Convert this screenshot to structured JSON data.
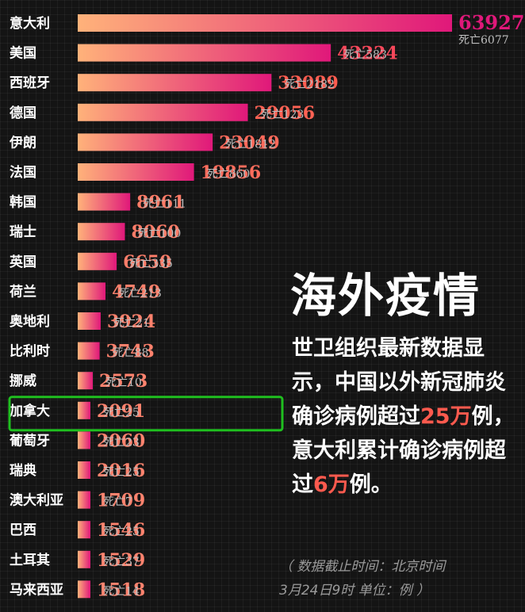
{
  "chart_data": {
    "type": "bar",
    "orientation": "horizontal",
    "categories": [
      "意大利",
      "美国",
      "西班牙",
      "德国",
      "伊朗",
      "法国",
      "韩国",
      "瑞士",
      "英国",
      "荷兰",
      "奥地利",
      "比利时",
      "挪威",
      "加拿大",
      "葡萄牙",
      "瑞典",
      "澳大利亚",
      "巴西",
      "土耳其",
      "马来西亚"
    ],
    "series": [
      {
        "values": [
          63927,
          43224,
          33089,
          29056,
          23049,
          19856,
          8961,
          8060,
          6650,
          4749,
          3924,
          3743,
          2573,
          2091,
          2060,
          2016,
          1709,
          1546,
          1529,
          1518
        ]
      }
    ],
    "death_prefix": "死亡",
    "deaths": [
      6077,
      583,
      2182,
      123,
      1812,
      860,
      111,
      100,
      335,
      213,
      21,
      88,
      10,
      25,
      23,
      25,
      7,
      25,
      37,
      14
    ],
    "highlighted_category": "加拿大",
    "colors": {
      "bar_start": "#ffb27a",
      "bar_end": "#e0187a",
      "death_text": "#bdbdbd",
      "highlight_box": "#1fbf1f",
      "accent": "#ff5a4e"
    }
  },
  "headline": "海外疫情",
  "body": {
    "part1": "世卫组织最新数据显示，中国以外新冠肺炎确诊病例超过",
    "num1": "25万",
    "part2": "例，意大利累计确诊病例超过",
    "num2": "6万",
    "part3": "例。"
  },
  "footnote": {
    "line1": "（ 数据截止时间：北京时间",
    "line2": "3月24日9时  单位：例 ）"
  }
}
